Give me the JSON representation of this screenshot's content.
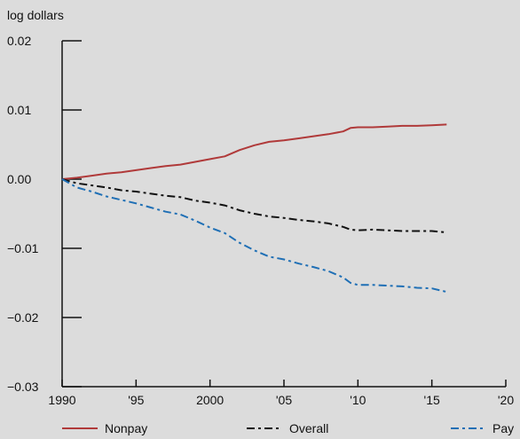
{
  "chart_data": {
    "type": "line",
    "title": "",
    "xlabel": "",
    "ylabel": "log dollars",
    "xlim": [
      1990,
      2020
    ],
    "ylim": [
      -0.03,
      0.02
    ],
    "grid": false,
    "legend_position": "bottom",
    "x_ticks": [
      {
        "value": 1990,
        "label": "1990"
      },
      {
        "value": 1995,
        "label": "'95"
      },
      {
        "value": 2000,
        "label": "2000"
      },
      {
        "value": 2005,
        "label": "'05"
      },
      {
        "value": 2010,
        "label": "'10"
      },
      {
        "value": 2015,
        "label": "'15"
      },
      {
        "value": 2020,
        "label": "'20"
      }
    ],
    "y_ticks": [
      {
        "value": 0.02,
        "label": "0.02"
      },
      {
        "value": 0.01,
        "label": "0.01"
      },
      {
        "value": 0.0,
        "label": "0.00"
      },
      {
        "value": -0.01,
        "label": "−0.01"
      },
      {
        "value": -0.02,
        "label": "−0.02"
      },
      {
        "value": -0.03,
        "label": "−0.03"
      }
    ],
    "series": [
      {
        "name": "Nonpay",
        "color": "#b03a3a",
        "style": "solid",
        "x": [
          1990,
          1991,
          1992,
          1993,
          1994,
          1995,
          1996,
          1997,
          1998,
          1999,
          2000,
          2001,
          2002,
          2003,
          2004,
          2005,
          2006,
          2007,
          2008,
          2009,
          2009.5,
          2010,
          2011,
          2012,
          2013,
          2014,
          2015,
          2016
        ],
        "y": [
          0.0,
          0.0002,
          0.0005,
          0.0008,
          0.001,
          0.0013,
          0.0016,
          0.0019,
          0.0021,
          0.0025,
          0.0029,
          0.0033,
          0.0042,
          0.0049,
          0.0054,
          0.0056,
          0.0059,
          0.0062,
          0.0065,
          0.0069,
          0.0074,
          0.0075,
          0.0075,
          0.0076,
          0.0077,
          0.0077,
          0.0078,
          0.0079
        ]
      },
      {
        "name": "Overall",
        "color": "#111111",
        "style": "dash-dot",
        "x": [
          1990,
          1991,
          1992,
          1993,
          1994,
          1995,
          1996,
          1997,
          1998,
          1999,
          2000,
          2001,
          2002,
          2003,
          2004,
          2005,
          2006,
          2007,
          2008,
          2009,
          2009.5,
          2010,
          2011,
          2012,
          2013,
          2014,
          2015,
          2016
        ],
        "y": [
          0.0,
          -0.0006,
          -0.0009,
          -0.0012,
          -0.0016,
          -0.0018,
          -0.0021,
          -0.0024,
          -0.0026,
          -0.0031,
          -0.0034,
          -0.0038,
          -0.0045,
          -0.005,
          -0.0054,
          -0.0056,
          -0.0059,
          -0.0061,
          -0.0064,
          -0.0069,
          -0.0073,
          -0.0074,
          -0.0073,
          -0.0074,
          -0.0075,
          -0.0075,
          -0.0075,
          -0.0077
        ]
      },
      {
        "name": "Pay",
        "color": "#1f6fb5",
        "style": "dash-dot",
        "x": [
          1990,
          1991,
          1992,
          1993,
          1994,
          1995,
          1996,
          1997,
          1998,
          1999,
          2000,
          2001,
          2002,
          2003,
          2004,
          2005,
          2006,
          2007,
          2008,
          2009,
          2009.5,
          2010,
          2011,
          2012,
          2013,
          2014,
          2015,
          2016
        ],
        "y": [
          0.0,
          -0.0012,
          -0.0018,
          -0.0025,
          -0.003,
          -0.0035,
          -0.0041,
          -0.0047,
          -0.0051,
          -0.006,
          -0.007,
          -0.0078,
          -0.0092,
          -0.0103,
          -0.0112,
          -0.0116,
          -0.0122,
          -0.0127,
          -0.0133,
          -0.0142,
          -0.015,
          -0.0153,
          -0.0153,
          -0.0154,
          -0.0155,
          -0.0157,
          -0.0158,
          -0.0163
        ]
      }
    ]
  }
}
